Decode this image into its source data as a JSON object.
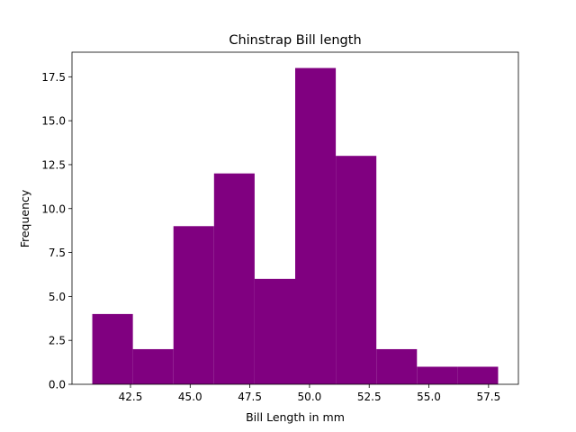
{
  "chart_data": {
    "type": "histogram",
    "title": "Chinstrap Bill length",
    "xlabel": "Bill Length in mm",
    "ylabel": "Frequency",
    "bin_edges": [
      40.9,
      42.6,
      44.3,
      46.0,
      47.7,
      49.4,
      51.1,
      52.8,
      54.5,
      56.2,
      57.9
    ],
    "values": [
      4,
      2,
      9,
      12,
      6,
      18,
      13,
      2,
      1,
      1
    ],
    "xlim": [
      40.05,
      58.75
    ],
    "ylim": [
      0,
      18.9
    ],
    "x_ticks": [
      42.5,
      45.0,
      47.5,
      50.0,
      52.5,
      55.0,
      57.5
    ],
    "x_tick_labels": [
      "42.5",
      "45.0",
      "47.5",
      "50.0",
      "52.5",
      "55.0",
      "57.5"
    ],
    "y_ticks": [
      0,
      2.5,
      5,
      7.5,
      10,
      12.5,
      15,
      17.5
    ],
    "y_tick_labels": [
      "0.0",
      "2.5",
      "5.0",
      "7.5",
      "10.0",
      "12.5",
      "15.0",
      "17.5"
    ],
    "bar_color": "#800080",
    "grid": false,
    "legend": "none"
  }
}
